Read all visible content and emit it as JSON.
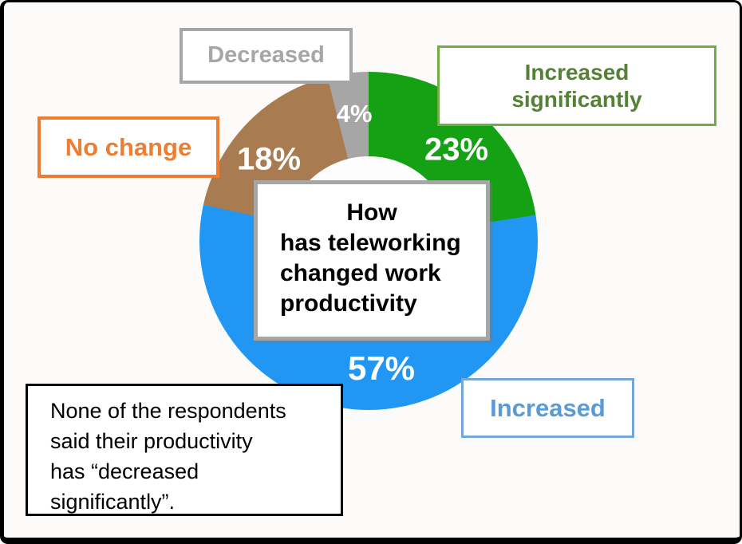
{
  "chart_data": {
    "type": "pie",
    "donut": true,
    "title": "How has teleworking changed work productivity",
    "unit": "%",
    "start_angle_deg": 0,
    "direction": "clockwise",
    "categories": [
      "Increased significantly",
      "Increased",
      "No change",
      "Decreased"
    ],
    "values": [
      23,
      57,
      18,
      4
    ],
    "segments": [
      {
        "label": "Increased significantly",
        "value": 23,
        "display": "23%",
        "color": "#14A114"
      },
      {
        "label": "Increased",
        "value": 57,
        "display": "57%",
        "color": "#2196F3"
      },
      {
        "label": "No change",
        "value": 18,
        "display": "18%",
        "color": "#A87C50"
      },
      {
        "label": "Decreased",
        "value": 4,
        "display": "4%",
        "color": "#A6A6A6"
      }
    ],
    "hole_color": "#FDFDFD",
    "legend_position": "callout-boxes-around-chart"
  },
  "center_box": {
    "lines": [
      "How",
      "has teleworking",
      "changed work",
      "productivity"
    ]
  },
  "callouts": {
    "decreased": {
      "label": "Decreased",
      "text_color": "#A6A6A6",
      "border_color": "#A6A6A6"
    },
    "no_change": {
      "label": "No change",
      "text_color": "#ED7D31",
      "border_color": "#ED7D31"
    },
    "increased_significantly": {
      "lines": [
        "Increased",
        "significantly"
      ],
      "text_color": "#548235",
      "border_color": "#70AD47"
    },
    "increased": {
      "label": "Increased",
      "text_color": "#5B9BD5",
      "border_color": "#74A7D8"
    }
  },
  "note_box": {
    "lines": [
      "None of the respondents",
      "said their productivity",
      "has “decreased",
      "significantly”."
    ]
  },
  "frame_color": "#000000"
}
